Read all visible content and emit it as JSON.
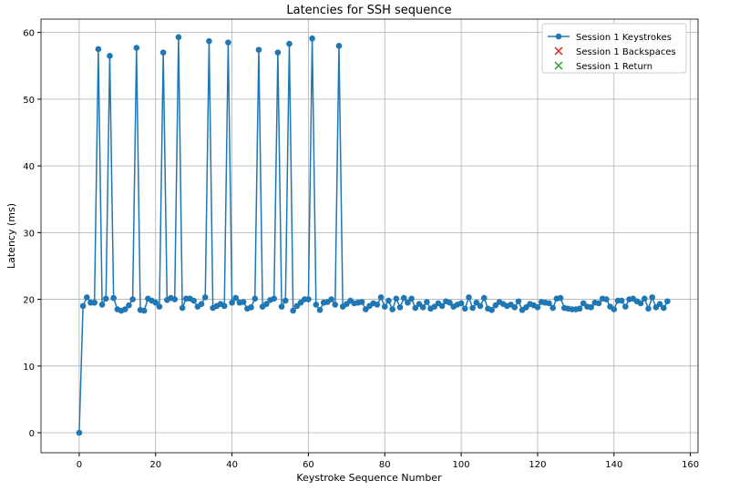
{
  "chart_data": {
    "type": "line",
    "title": "Latencies for SSH sequence",
    "xlabel": "Keystroke Sequence Number",
    "ylabel": "Latency (ms)",
    "xlim": [
      -10,
      162
    ],
    "ylim": [
      -3,
      62
    ],
    "xticks": [
      0,
      20,
      40,
      60,
      80,
      100,
      120,
      140,
      160
    ],
    "yticks": [
      0,
      10,
      20,
      30,
      40,
      50,
      60
    ],
    "grid": true,
    "legend_position": "top-right",
    "series": [
      {
        "name": "Session 1 Keystrokes",
        "color": "#1f77b4",
        "marker": "circle",
        "values": [
          0,
          19,
          20.3,
          19.5,
          19.5,
          57.5,
          19.2,
          20.1,
          56.5,
          20.2,
          18.5,
          18.3,
          18.5,
          19.1,
          20,
          57.7,
          18.4,
          18.3,
          20.1,
          19.8,
          19.5,
          18.9,
          57,
          19.9,
          20.2,
          20,
          59.3,
          18.7,
          20.1,
          20.1,
          19.8,
          18.9,
          19.3,
          20.3,
          58.7,
          18.7,
          19,
          19.3,
          19,
          58.5,
          19.5,
          20.2,
          19.5,
          19.6,
          18.6,
          18.8,
          20.1,
          57.4,
          18.9,
          19.3,
          19.9,
          20.1,
          57,
          18.9,
          19.8,
          58.3,
          18.3,
          19,
          19.5,
          20,
          20,
          59.1,
          19.2,
          18.4,
          19.5,
          19.6,
          20,
          19.2,
          58,
          18.9,
          19.3,
          19.8,
          19.4,
          19.5,
          19.6,
          18.5,
          19,
          19.4,
          19.2,
          20.3,
          18.9,
          19.8,
          18.5,
          20.1,
          18.8,
          20.2,
          19.5,
          20.1,
          18.7,
          19.3,
          18.8,
          19.6,
          18.6,
          18.9,
          19.4,
          19,
          19.7,
          19.5,
          18.9,
          19.2,
          19.4,
          18.6,
          20.3,
          18.7,
          19.5,
          19,
          20.2,
          18.6,
          18.4,
          19.1,
          19.6,
          19.3,
          19,
          19.2,
          18.8,
          19.7,
          18.4,
          18.8,
          19.3,
          19.1,
          18.8,
          19.6,
          19.5,
          19.4,
          18.7,
          20.1,
          20.2,
          18.7,
          18.6,
          18.5,
          18.5,
          18.6,
          19.4,
          18.9,
          18.8,
          19.5,
          19.4,
          20.1,
          20,
          18.9,
          18.5,
          19.8,
          19.8,
          18.9,
          20,
          20.1,
          19.7,
          19.4,
          20.1,
          18.6,
          20.3,
          18.8,
          19.3,
          18.7,
          19.7
        ]
      },
      {
        "name": "Session 1 Backspaces",
        "color": "#d62728",
        "marker": "x",
        "values": []
      },
      {
        "name": "Session 1 Return",
        "color": "#2ca02c",
        "marker": "x",
        "values": []
      }
    ]
  }
}
